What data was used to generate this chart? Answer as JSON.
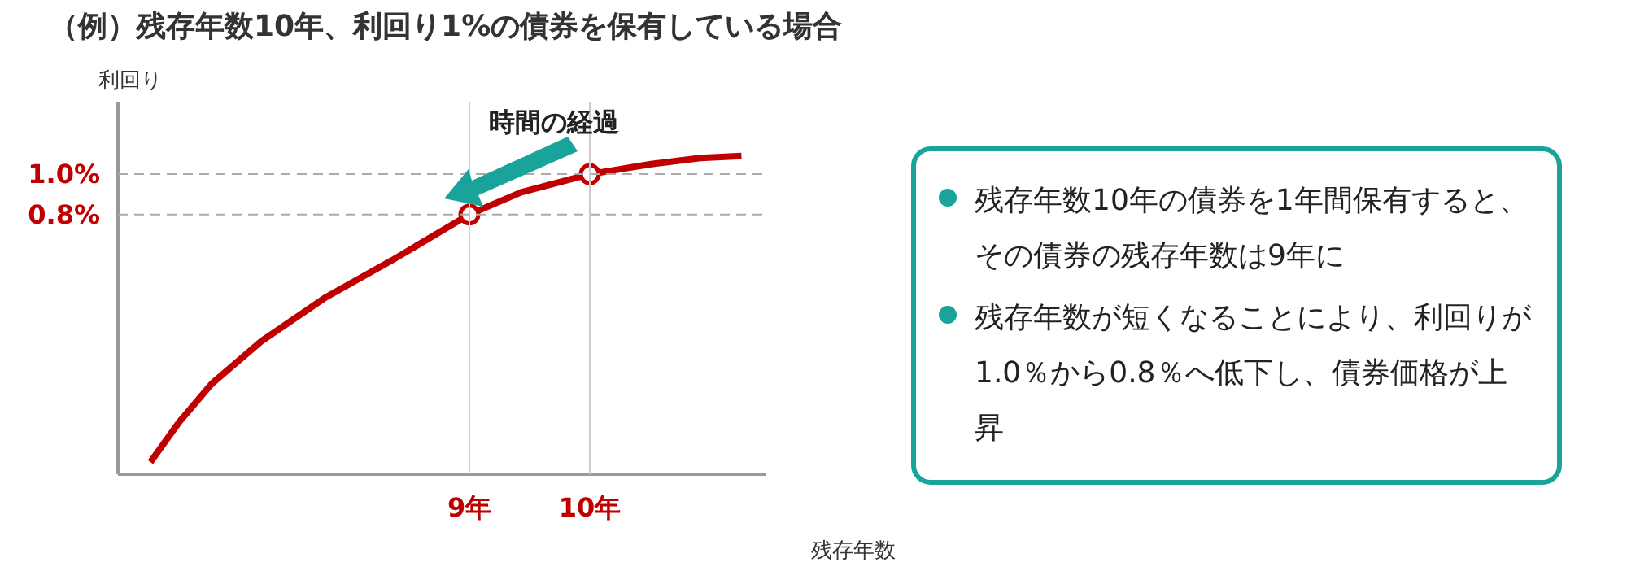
{
  "chart_data": {
    "type": "line",
    "title": "（例）残存年数10年、利回り1%の債券を保有している場合",
    "xlabel": "残存年数",
    "ylabel": "利回り",
    "xlim": [
      6.08,
      11.46
    ],
    "ylim": [
      -0.49,
      1.36
    ],
    "xticks": [
      {
        "value": 9,
        "label": "9年"
      },
      {
        "value": 10,
        "label": "10年"
      }
    ],
    "yticks": [
      {
        "value": 0.8,
        "label": "0.8%"
      },
      {
        "value": 1.0,
        "label": "1.0%"
      }
    ],
    "grid": false,
    "line_style": "solid",
    "marker": "none",
    "series": [
      {
        "color": "#c00000",
        "x": [
          6.35,
          6.59,
          6.86,
          7.27,
          7.81,
          8.35,
          9.0,
          9.43,
          10.0,
          10.51,
          10.92,
          11.26
        ],
        "values": [
          -0.43,
          -0.23,
          -0.04,
          0.17,
          0.39,
          0.57,
          0.8,
          0.91,
          1.0,
          1.05,
          1.08,
          1.09
        ]
      },
      {
        "type": "scatter",
        "color": "#c00000",
        "marker": "circle",
        "x": [
          9,
          10
        ],
        "values": [
          0.8,
          1.0
        ]
      }
    ],
    "ref_lines": [
      {
        "axis": "y",
        "value": 1.0,
        "color": "#aaaaaa",
        "line_style": "dashed"
      },
      {
        "axis": "y",
        "value": 0.8,
        "color": "#aaaaaa",
        "line_style": "dashed"
      },
      {
        "axis": "x",
        "value": 9,
        "color": "#cccccc",
        "line_style": "solid"
      },
      {
        "axis": "x",
        "value": 10,
        "color": "#cccccc",
        "line_style": "solid"
      }
    ],
    "annotations": [
      "時間の経過",
      "残存年数10年の債券を1年間保有すると、その債券の残存年数は9年に",
      "残存年数が短くなることにより、利回りが1.0％から0.8％へ低下し、債券価格が上昇"
    ]
  }
}
